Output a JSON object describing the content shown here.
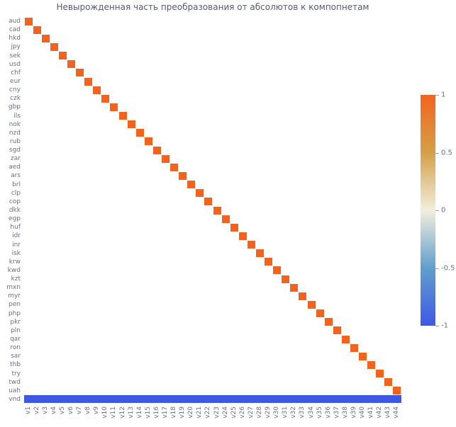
{
  "chart_data": {
    "type": "heatmap",
    "title": "Невырожденная часть преобразования от абсолютов к компопнетам",
    "xlabel": "",
    "ylabel": "",
    "grid": false,
    "background_value": 0,
    "x_labels": [
      "v1",
      "v2",
      "v3",
      "v4",
      "v5",
      "v6",
      "v7",
      "v8",
      "v9",
      "v10",
      "v11",
      "v12",
      "v13",
      "v14",
      "v15",
      "v16",
      "v17",
      "v18",
      "v19",
      "v20",
      "v21",
      "v22",
      "v23",
      "v24",
      "v25",
      "v26",
      "v27",
      "v28",
      "v29",
      "v30",
      "v31",
      "v32",
      "v33",
      "v34",
      "v35",
      "v36",
      "v37",
      "v38",
      "v39",
      "v40",
      "v41",
      "v42",
      "v43",
      "v44"
    ],
    "y_labels": [
      "aud",
      "cad",
      "hkd",
      "jpy",
      "sek",
      "usd",
      "chf",
      "eur",
      "cny",
      "czk",
      "gbp",
      "ils",
      "nok",
      "nzd",
      "rub",
      "sgd",
      "zar",
      "aed",
      "ars",
      "brl",
      "clp",
      "cop",
      "dkk",
      "egp",
      "huf",
      "idr",
      "inr",
      "isk",
      "krw",
      "kwd",
      "kzt",
      "mxn",
      "myr",
      "pen",
      "php",
      "pkr",
      "pln",
      "qar",
      "ron",
      "sar",
      "thb",
      "try",
      "twd",
      "uah",
      "vnd"
    ],
    "cells": [
      {
        "row": "aud",
        "col": "v1",
        "value": 1.0
      },
      {
        "row": "cad",
        "col": "v2",
        "value": 1.0
      },
      {
        "row": "hkd",
        "col": "v3",
        "value": 1.0
      },
      {
        "row": "jpy",
        "col": "v4",
        "value": 1.0
      },
      {
        "row": "sek",
        "col": "v5",
        "value": 1.0
      },
      {
        "row": "usd",
        "col": "v6",
        "value": 1.0
      },
      {
        "row": "chf",
        "col": "v7",
        "value": 1.0
      },
      {
        "row": "eur",
        "col": "v8",
        "value": 1.0
      },
      {
        "row": "cny",
        "col": "v9",
        "value": 1.0
      },
      {
        "row": "czk",
        "col": "v10",
        "value": 1.0
      },
      {
        "row": "gbp",
        "col": "v11",
        "value": 1.0
      },
      {
        "row": "ils",
        "col": "v12",
        "value": 1.0
      },
      {
        "row": "nok",
        "col": "v13",
        "value": 1.0
      },
      {
        "row": "nzd",
        "col": "v14",
        "value": 1.0
      },
      {
        "row": "rub",
        "col": "v15",
        "value": 1.0
      },
      {
        "row": "sgd",
        "col": "v16",
        "value": 1.0
      },
      {
        "row": "zar",
        "col": "v17",
        "value": 1.0
      },
      {
        "row": "aed",
        "col": "v18",
        "value": 1.0
      },
      {
        "row": "ars",
        "col": "v19",
        "value": 1.0
      },
      {
        "row": "brl",
        "col": "v20",
        "value": 1.0
      },
      {
        "row": "clp",
        "col": "v21",
        "value": 1.0
      },
      {
        "row": "cop",
        "col": "v22",
        "value": 1.0
      },
      {
        "row": "dkk",
        "col": "v23",
        "value": 1.0
      },
      {
        "row": "egp",
        "col": "v24",
        "value": 1.0
      },
      {
        "row": "huf",
        "col": "v25",
        "value": 1.0
      },
      {
        "row": "idr",
        "col": "v26",
        "value": 1.0
      },
      {
        "row": "inr",
        "col": "v27",
        "value": 1.0
      },
      {
        "row": "isk",
        "col": "v28",
        "value": 1.0
      },
      {
        "row": "krw",
        "col": "v29",
        "value": 1.0
      },
      {
        "row": "kwd",
        "col": "v30",
        "value": 1.0
      },
      {
        "row": "kzt",
        "col": "v31",
        "value": 1.0
      },
      {
        "row": "mxn",
        "col": "v32",
        "value": 1.0
      },
      {
        "row": "myr",
        "col": "v33",
        "value": 1.0
      },
      {
        "row": "pen",
        "col": "v34",
        "value": 1.0
      },
      {
        "row": "php",
        "col": "v35",
        "value": 1.0
      },
      {
        "row": "pkr",
        "col": "v36",
        "value": 1.0
      },
      {
        "row": "pln",
        "col": "v37",
        "value": 1.0
      },
      {
        "row": "qar",
        "col": "v38",
        "value": 1.0
      },
      {
        "row": "ron",
        "col": "v39",
        "value": 1.0
      },
      {
        "row": "sar",
        "col": "v40",
        "value": 1.0
      },
      {
        "row": "thb",
        "col": "v41",
        "value": 1.0
      },
      {
        "row": "try",
        "col": "v42",
        "value": 1.0
      },
      {
        "row": "twd",
        "col": "v43",
        "value": 1.0
      },
      {
        "row": "uah",
        "col": "v44",
        "value": 1.0
      },
      {
        "row": "vnd",
        "col_start": "v1",
        "col_end": "v44",
        "value": -1.0
      }
    ],
    "colorscale": [
      {
        "value": -1.0,
        "color": "#3e58e6"
      },
      {
        "value": -0.5,
        "color": "#609fcc"
      },
      {
        "value": 0.0,
        "color": "#f2eedd"
      },
      {
        "value": 0.5,
        "color": "#d3a049"
      },
      {
        "value": 1.0,
        "color": "#f2641d"
      }
    ],
    "colorbar": {
      "min": -1.0,
      "max": 1.0,
      "position": "right",
      "tick_values": [
        1,
        0.5,
        0,
        -0.5,
        -1
      ],
      "tick_labels": [
        "1",
        "0.5",
        "0",
        "-0.5",
        "-1"
      ]
    },
    "colors": {
      "diagonal": "#f2641d",
      "bottom_row": "#3e58e6",
      "tick_text": "#697080",
      "title_text": "#515c72",
      "plot_background": "#ffffff"
    }
  }
}
